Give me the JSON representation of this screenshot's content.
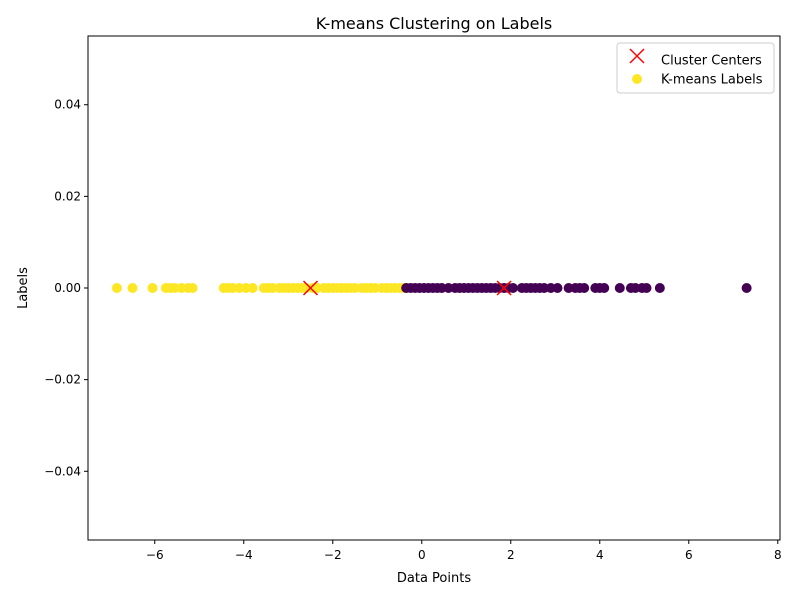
{
  "chart_data": {
    "type": "scatter",
    "title": "K-means Clustering on Labels",
    "xlabel": "Data Points",
    "ylabel": "Labels",
    "xlim": [
      -7.5,
      8.05
    ],
    "ylim": [
      -0.055,
      0.055
    ],
    "xticks": [
      -6,
      -4,
      -2,
      0,
      2,
      4,
      6,
      8
    ],
    "yticks": [
      -0.04,
      -0.02,
      0.0,
      0.02,
      0.04
    ],
    "xtick_labels": [
      "−6",
      "−4",
      "−2",
      "0",
      "2",
      "4",
      "6",
      "8"
    ],
    "ytick_labels": [
      "−0.04",
      "−0.02",
      "0.00",
      "0.02",
      "0.04"
    ],
    "grid": false,
    "legend_position": "top-right",
    "colors": {
      "cluster_0": "#440154",
      "cluster_1": "#fde725",
      "centers": "#ff0000",
      "axis": "#000000"
    },
    "series": [
      {
        "name": "K-means Labels",
        "marker": "circle",
        "legend_color": "#fde725",
        "points": [
          {
            "x": -6.85,
            "y": 0,
            "label": 1
          },
          {
            "x": -6.5,
            "y": 0,
            "label": 1
          },
          {
            "x": -6.05,
            "y": 0,
            "label": 1
          },
          {
            "x": -5.75,
            "y": 0,
            "label": 1
          },
          {
            "x": -5.65,
            "y": 0,
            "label": 1
          },
          {
            "x": -5.55,
            "y": 0,
            "label": 1
          },
          {
            "x": -5.4,
            "y": 0,
            "label": 1
          },
          {
            "x": -5.25,
            "y": 0,
            "label": 1
          },
          {
            "x": -5.15,
            "y": 0,
            "label": 1
          },
          {
            "x": -4.45,
            "y": 0,
            "label": 1
          },
          {
            "x": -4.35,
            "y": 0,
            "label": 1
          },
          {
            "x": -4.25,
            "y": 0,
            "label": 1
          },
          {
            "x": -4.1,
            "y": 0,
            "label": 1
          },
          {
            "x": -3.95,
            "y": 0,
            "label": 1
          },
          {
            "x": -3.8,
            "y": 0,
            "label": 1
          },
          {
            "x": -3.55,
            "y": 0,
            "label": 1
          },
          {
            "x": -3.45,
            "y": 0,
            "label": 1
          },
          {
            "x": -3.35,
            "y": 0,
            "label": 1
          },
          {
            "x": -3.2,
            "y": 0,
            "label": 1
          },
          {
            "x": -3.1,
            "y": 0,
            "label": 1
          },
          {
            "x": -3.0,
            "y": 0,
            "label": 1
          },
          {
            "x": -2.9,
            "y": 0,
            "label": 1
          },
          {
            "x": -2.8,
            "y": 0,
            "label": 1
          },
          {
            "x": -2.7,
            "y": 0,
            "label": 1
          },
          {
            "x": -2.6,
            "y": 0,
            "label": 1
          },
          {
            "x": -2.45,
            "y": 0,
            "label": 1
          },
          {
            "x": -2.35,
            "y": 0,
            "label": 1
          },
          {
            "x": -2.2,
            "y": 0,
            "label": 1
          },
          {
            "x": -2.1,
            "y": 0,
            "label": 1
          },
          {
            "x": -2.0,
            "y": 0,
            "label": 1
          },
          {
            "x": -1.9,
            "y": 0,
            "label": 1
          },
          {
            "x": -1.8,
            "y": 0,
            "label": 1
          },
          {
            "x": -1.7,
            "y": 0,
            "label": 1
          },
          {
            "x": -1.6,
            "y": 0,
            "label": 1
          },
          {
            "x": -1.5,
            "y": 0,
            "label": 1
          },
          {
            "x": -1.35,
            "y": 0,
            "label": 1
          },
          {
            "x": -1.25,
            "y": 0,
            "label": 1
          },
          {
            "x": -1.15,
            "y": 0,
            "label": 1
          },
          {
            "x": -1.05,
            "y": 0,
            "label": 1
          },
          {
            "x": -0.9,
            "y": 0,
            "label": 1
          },
          {
            "x": -0.8,
            "y": 0,
            "label": 1
          },
          {
            "x": -0.7,
            "y": 0,
            "label": 1
          },
          {
            "x": -0.6,
            "y": 0,
            "label": 1
          },
          {
            "x": -0.5,
            "y": 0,
            "label": 1
          },
          {
            "x": -0.4,
            "y": 0,
            "label": 1
          },
          {
            "x": -0.33,
            "y": 0,
            "label": 1
          },
          {
            "x": -0.35,
            "y": 0,
            "label": 0
          },
          {
            "x": -0.25,
            "y": 0,
            "label": 0
          },
          {
            "x": -0.15,
            "y": 0,
            "label": 0
          },
          {
            "x": -0.05,
            "y": 0,
            "label": 0
          },
          {
            "x": 0.05,
            "y": 0,
            "label": 0
          },
          {
            "x": 0.15,
            "y": 0,
            "label": 0
          },
          {
            "x": 0.25,
            "y": 0,
            "label": 0
          },
          {
            "x": 0.35,
            "y": 0,
            "label": 0
          },
          {
            "x": 0.45,
            "y": 0,
            "label": 0
          },
          {
            "x": 0.6,
            "y": 0,
            "label": 0
          },
          {
            "x": 0.75,
            "y": 0,
            "label": 0
          },
          {
            "x": 0.85,
            "y": 0,
            "label": 0
          },
          {
            "x": 0.95,
            "y": 0,
            "label": 0
          },
          {
            "x": 1.05,
            "y": 0,
            "label": 0
          },
          {
            "x": 1.15,
            "y": 0,
            "label": 0
          },
          {
            "x": 1.25,
            "y": 0,
            "label": 0
          },
          {
            "x": 1.35,
            "y": 0,
            "label": 0
          },
          {
            "x": 1.45,
            "y": 0,
            "label": 0
          },
          {
            "x": 1.55,
            "y": 0,
            "label": 0
          },
          {
            "x": 1.65,
            "y": 0,
            "label": 0
          },
          {
            "x": 1.75,
            "y": 0,
            "label": 0
          },
          {
            "x": 1.85,
            "y": 0,
            "label": 0
          },
          {
            "x": 1.95,
            "y": 0,
            "label": 0
          },
          {
            "x": 2.05,
            "y": 0,
            "label": 0
          },
          {
            "x": 2.25,
            "y": 0,
            "label": 0
          },
          {
            "x": 2.35,
            "y": 0,
            "label": 0
          },
          {
            "x": 2.45,
            "y": 0,
            "label": 0
          },
          {
            "x": 2.55,
            "y": 0,
            "label": 0
          },
          {
            "x": 2.65,
            "y": 0,
            "label": 0
          },
          {
            "x": 2.75,
            "y": 0,
            "label": 0
          },
          {
            "x": 2.9,
            "y": 0,
            "label": 0
          },
          {
            "x": 3.05,
            "y": 0,
            "label": 0
          },
          {
            "x": 3.3,
            "y": 0,
            "label": 0
          },
          {
            "x": 3.45,
            "y": 0,
            "label": 0
          },
          {
            "x": 3.55,
            "y": 0,
            "label": 0
          },
          {
            "x": 3.65,
            "y": 0,
            "label": 0
          },
          {
            "x": 3.9,
            "y": 0,
            "label": 0
          },
          {
            "x": 4.0,
            "y": 0,
            "label": 0
          },
          {
            "x": 4.1,
            "y": 0,
            "label": 0
          },
          {
            "x": 4.45,
            "y": 0,
            "label": 0
          },
          {
            "x": 4.7,
            "y": 0,
            "label": 0
          },
          {
            "x": 4.8,
            "y": 0,
            "label": 0
          },
          {
            "x": 4.95,
            "y": 0,
            "label": 0
          },
          {
            "x": 5.05,
            "y": 0,
            "label": 0
          },
          {
            "x": 5.35,
            "y": 0,
            "label": 0
          },
          {
            "x": 7.3,
            "y": 0,
            "label": 0
          }
        ]
      },
      {
        "name": "Cluster Centers",
        "marker": "x",
        "color": "#ff0000",
        "points": [
          {
            "x": -2.5,
            "y": 0
          },
          {
            "x": 1.85,
            "y": 0
          }
        ]
      }
    ]
  }
}
